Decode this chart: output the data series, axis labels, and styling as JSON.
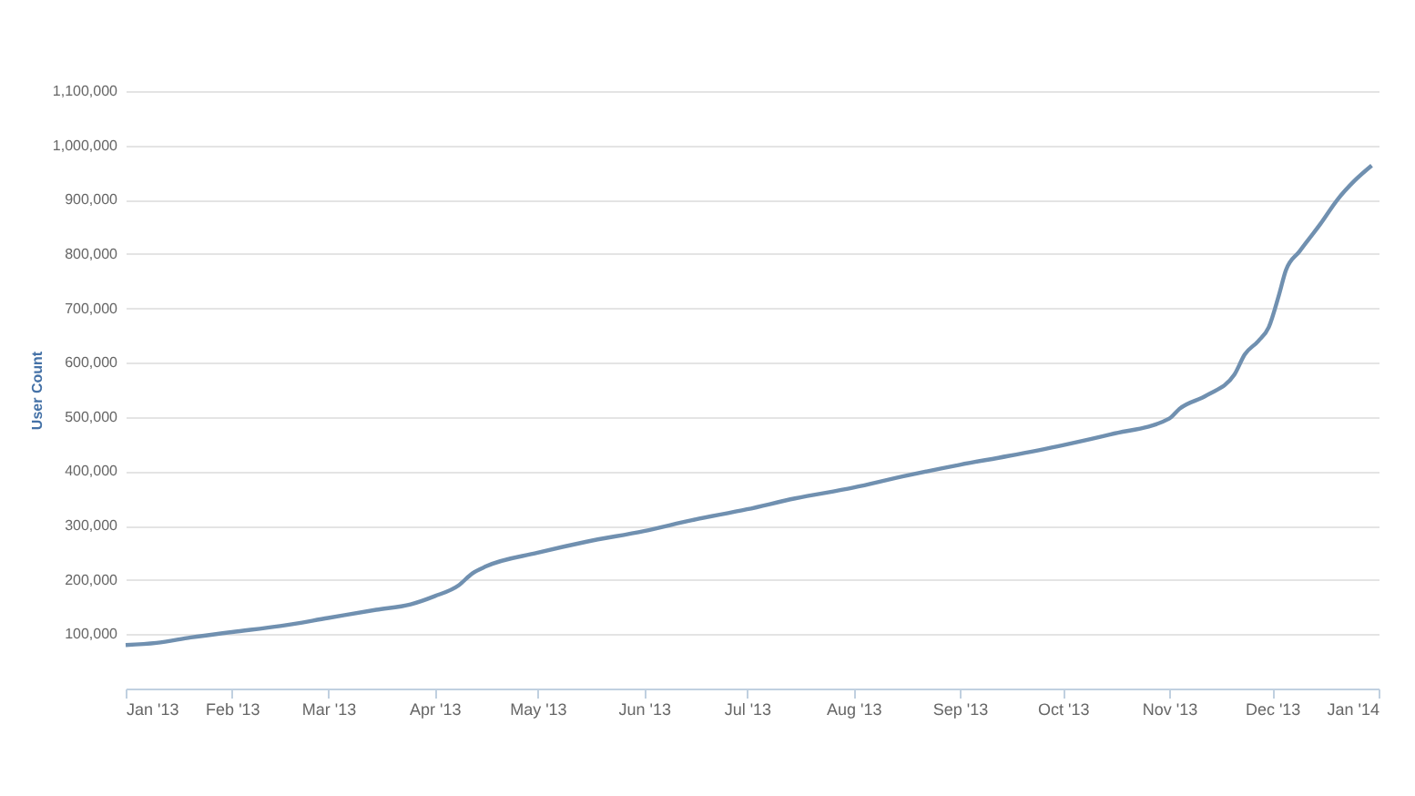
{
  "chart_data": {
    "type": "line",
    "ylabel": "User Count",
    "x": [
      "2013-01-01",
      "2013-01-10",
      "2013-01-20",
      "2013-02-01",
      "2013-02-15",
      "2013-03-01",
      "2013-03-15",
      "2013-03-25",
      "2013-04-01",
      "2013-04-08",
      "2013-04-12",
      "2013-04-16",
      "2013-05-01",
      "2013-05-15",
      "2013-06-01",
      "2013-06-15",
      "2013-07-01",
      "2013-07-15",
      "2013-08-01",
      "2013-08-15",
      "2013-09-01",
      "2013-09-15",
      "2013-10-01",
      "2013-10-15",
      "2013-11-01",
      "2013-11-04",
      "2013-11-12",
      "2013-11-20",
      "2013-11-23",
      "2013-11-27",
      "2013-11-30",
      "2013-12-03",
      "2013-12-05",
      "2013-12-09",
      "2013-12-15",
      "2013-12-20",
      "2013-12-25",
      "2013-12-30"
    ],
    "series": [
      {
        "color": "#7090b0",
        "values": [
          80000,
          84000,
          94000,
          104000,
          115000,
          130000,
          145000,
          155000,
          170000,
          190000,
          212000,
          225000,
          250000,
          270000,
          290000,
          310000,
          330000,
          350000,
          370000,
          390000,
          412000,
          428000,
          448000,
          468000,
          497000,
          515000,
          540000,
          578000,
          615000,
          640000,
          665000,
          725000,
          770000,
          805000,
          855000,
          900000,
          935000,
          963000
        ]
      }
    ],
    "xlim": [
      "2013-01-01",
      "2014-01-01"
    ],
    "xticks": [
      {
        "value": "2013-01-01",
        "label": "Jan '13"
      },
      {
        "value": "2013-02-01",
        "label": "Feb '13"
      },
      {
        "value": "2013-03-01",
        "label": "Mar '13"
      },
      {
        "value": "2013-04-01",
        "label": "Apr '13"
      },
      {
        "value": "2013-05-01",
        "label": "May '13"
      },
      {
        "value": "2013-06-01",
        "label": "Jun '13"
      },
      {
        "value": "2013-07-01",
        "label": "Jul '13"
      },
      {
        "value": "2013-08-01",
        "label": "Aug '13"
      },
      {
        "value": "2013-09-01",
        "label": "Sep '13"
      },
      {
        "value": "2013-10-01",
        "label": "Oct '13"
      },
      {
        "value": "2013-11-01",
        "label": "Nov '13"
      },
      {
        "value": "2013-12-01",
        "label": "Dec '13"
      },
      {
        "value": "2014-01-01",
        "label": "Jan '14"
      }
    ],
    "ylim": [
      0,
      1100000
    ],
    "yticks": [
      {
        "value": 0,
        "label": null
      },
      {
        "value": 100000,
        "label": "100,000"
      },
      {
        "value": 200000,
        "label": "200,000"
      },
      {
        "value": 300000,
        "label": "300,000"
      },
      {
        "value": 400000,
        "label": "400,000"
      },
      {
        "value": 500000,
        "label": "500,000"
      },
      {
        "value": 600000,
        "label": "600,000"
      },
      {
        "value": 700000,
        "label": "700,000"
      },
      {
        "value": 800000,
        "label": "800,000"
      },
      {
        "value": 900000,
        "label": "900,000"
      },
      {
        "value": 1000000,
        "label": "1,000,000"
      },
      {
        "value": 1100000,
        "label": "1,100,000"
      }
    ],
    "grid": "y",
    "legend": false,
    "marker": "none",
    "line_style": "solid"
  }
}
